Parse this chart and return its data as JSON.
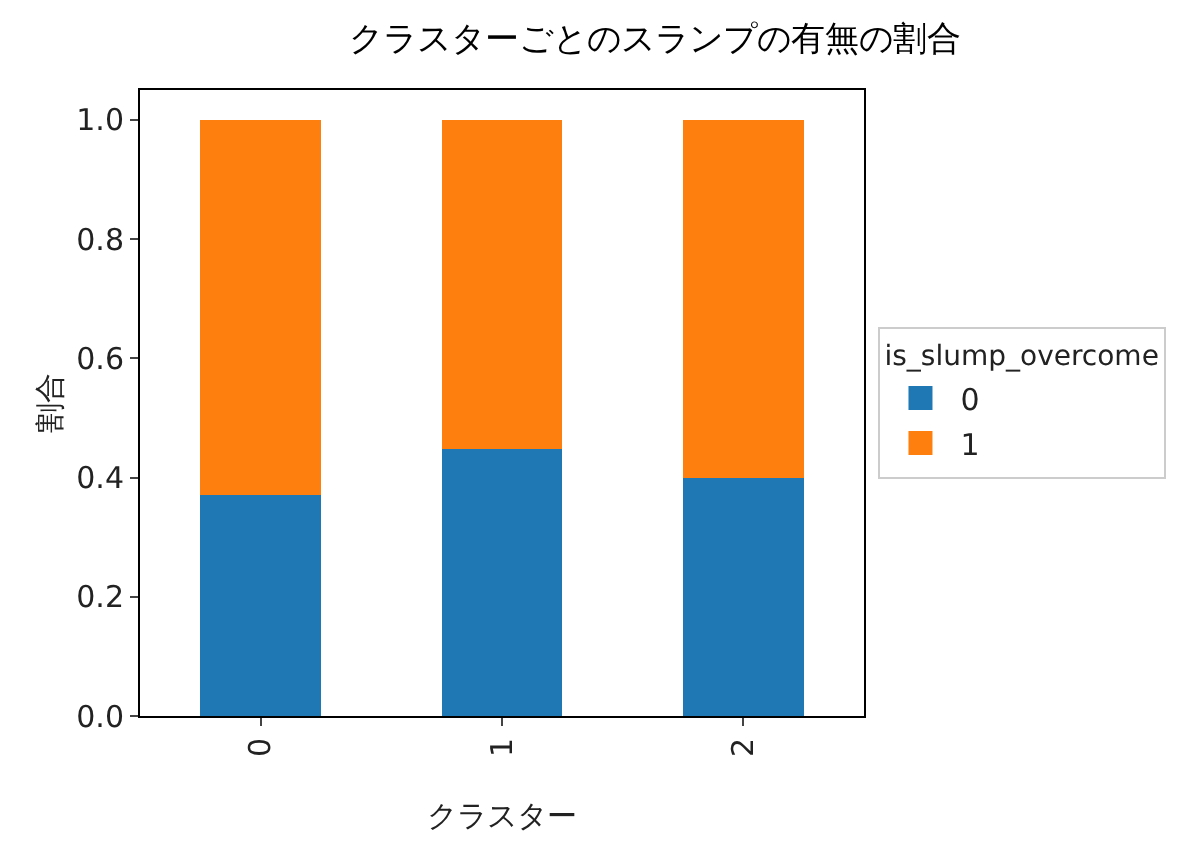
{
  "chart_data": {
    "type": "bar",
    "title": "クラスターごとのスランプの有無の割合",
    "xlabel": "クラスター",
    "ylabel": "割合",
    "legend_title": "is_slump_overcome",
    "categories": [
      "0",
      "1",
      "2"
    ],
    "stacked": true,
    "series": [
      {
        "name": "0",
        "color": "#1f77b4",
        "values": [
          0.371,
          0.448,
          0.4
        ]
      },
      {
        "name": "1",
        "color": "#ff7f0e",
        "values": [
          0.629,
          0.552,
          0.6
        ]
      }
    ],
    "ylim": [
      0,
      1.05
    ],
    "yticks": [
      {
        "value": 0,
        "label": "0.0"
      },
      {
        "value": 0.2,
        "label": "0.2"
      },
      {
        "value": 0.4,
        "label": "0.4"
      },
      {
        "value": 0.6,
        "label": "0.6"
      },
      {
        "value": 0.8,
        "label": "0.8"
      },
      {
        "value": 1,
        "label": "1.0"
      }
    ],
    "grid": false,
    "legend": "right"
  }
}
